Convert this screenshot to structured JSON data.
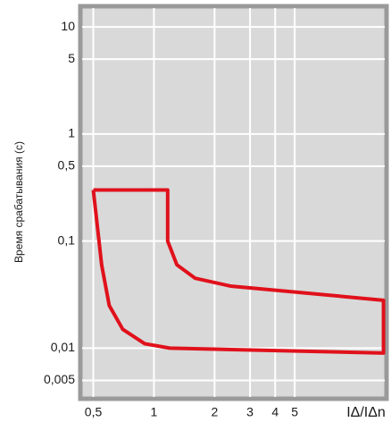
{
  "chart_data": {
    "type": "line",
    "y_label": "Время срабатывания (с)",
    "x_label": "IΔ/IΔn",
    "log_x": true,
    "log_y": true,
    "grid": true,
    "xlim": [
      0.44,
      14
    ],
    "ylim": [
      0.0035,
      15
    ],
    "xticks": [
      {
        "value": 0.5,
        "label": "0,5"
      },
      1,
      2,
      3,
      4,
      5
    ],
    "yticks": [
      10,
      5,
      1,
      {
        "value": 0.5,
        "label": "0,5"
      },
      {
        "value": 0.1,
        "label": "0,1"
      },
      {
        "value": 0.01,
        "label": "0,01"
      },
      {
        "value": 0.005,
        "label": "0,005"
      }
    ],
    "series": [
      {
        "color": "#e0111b",
        "x": [
          0.5,
          1.17,
          1.17,
          1.3,
          1.6,
          2.4,
          13.8,
          13.8,
          1.2,
          0.9,
          0.7,
          0.6,
          0.55,
          0.5
        ],
        "values": [
          0.3,
          0.3,
          0.1,
          0.06,
          0.045,
          0.038,
          0.028,
          0.009,
          0.01,
          0.011,
          0.015,
          0.025,
          0.06,
          0.3
        ]
      }
    ]
  }
}
